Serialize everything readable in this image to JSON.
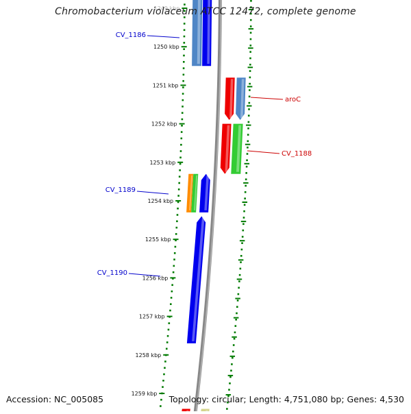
{
  "title": "Chromobacterium violaceum ATCC 12472, complete genome",
  "footer": {
    "accession": "Accession: NC_005085",
    "topology": "Topology: circular; Length: 4,751,080 bp; Genes: 4,530"
  },
  "colors": {
    "backbone": "#888888",
    "tick": "#007a00",
    "minus_label": "#0000cc",
    "plus_label": "#cc0000"
  },
  "kbp_ticks": [
    {
      "kbp": 1249,
      "label": "1249 kbp"
    },
    {
      "kbp": 1250,
      "label": "1250 kbp"
    },
    {
      "kbp": 1251,
      "label": "1251 kbp"
    },
    {
      "kbp": 1252,
      "label": "1252 kbp"
    },
    {
      "kbp": 1253,
      "label": "1253 kbp"
    },
    {
      "kbp": 1254,
      "label": "1254 kbp"
    },
    {
      "kbp": 1255,
      "label": "1255 kbp"
    },
    {
      "kbp": 1256,
      "label": "1256 kbp"
    },
    {
      "kbp": 1257,
      "label": "1257 kbp"
    },
    {
      "kbp": 1258,
      "label": "1258 kbp"
    },
    {
      "kbp": 1259,
      "label": "1259 kbp"
    }
  ],
  "genes": [
    {
      "strand": "minus",
      "color": "#4f86c6",
      "start_kbp": 1248.4,
      "end_kbp": 1250.5,
      "arrow": false
    },
    {
      "strand": "minus",
      "color": "#0000ee",
      "start_kbp": 1248.4,
      "end_kbp": 1250.5,
      "arrow": false
    },
    {
      "strand": "plus",
      "color": "#ee0000",
      "start_kbp": 1250.8,
      "end_kbp": 1251.9,
      "arrow": true
    },
    {
      "strand": "plus",
      "color": "#4f86c6",
      "start_kbp": 1250.8,
      "end_kbp": 1251.9,
      "arrow": true
    },
    {
      "strand": "plus",
      "color": "#ee0000",
      "start_kbp": 1252.0,
      "end_kbp": 1253.3,
      "arrow": true
    },
    {
      "strand": "plus",
      "color": "#33cc33",
      "start_kbp": 1252.0,
      "end_kbp": 1253.3,
      "arrow": false
    },
    {
      "strand": "minus",
      "color": "#ff8c00",
      "start_kbp": 1253.3,
      "end_kbp": 1254.3,
      "arrow": false
    },
    {
      "strand": "minus",
      "color": "#33cc33",
      "start_kbp": 1253.3,
      "end_kbp": 1254.3,
      "arrow": false
    },
    {
      "strand": "minus",
      "color": "#0000ee",
      "start_kbp": 1253.3,
      "end_kbp": 1254.3,
      "arrow": true
    },
    {
      "strand": "minus",
      "color": "#0000ee",
      "start_kbp": 1254.4,
      "end_kbp": 1257.7,
      "arrow": true
    },
    {
      "strand": "minus",
      "color": "#ee0000",
      "start_kbp": 1259.4,
      "end_kbp": 1259.7,
      "arrow": false
    },
    {
      "strand": "plus",
      "color": "#d4d48c",
      "start_kbp": 1259.4,
      "end_kbp": 1259.7,
      "arrow": false
    }
  ],
  "gene_labels": [
    {
      "text": "CV_1186",
      "strand": "minus"
    },
    {
      "text": "aroC",
      "strand": "plus"
    },
    {
      "text": "CV_1188",
      "strand": "plus"
    },
    {
      "text": "CV_1189",
      "strand": "minus"
    },
    {
      "text": "CV_1190",
      "strand": "minus"
    }
  ]
}
